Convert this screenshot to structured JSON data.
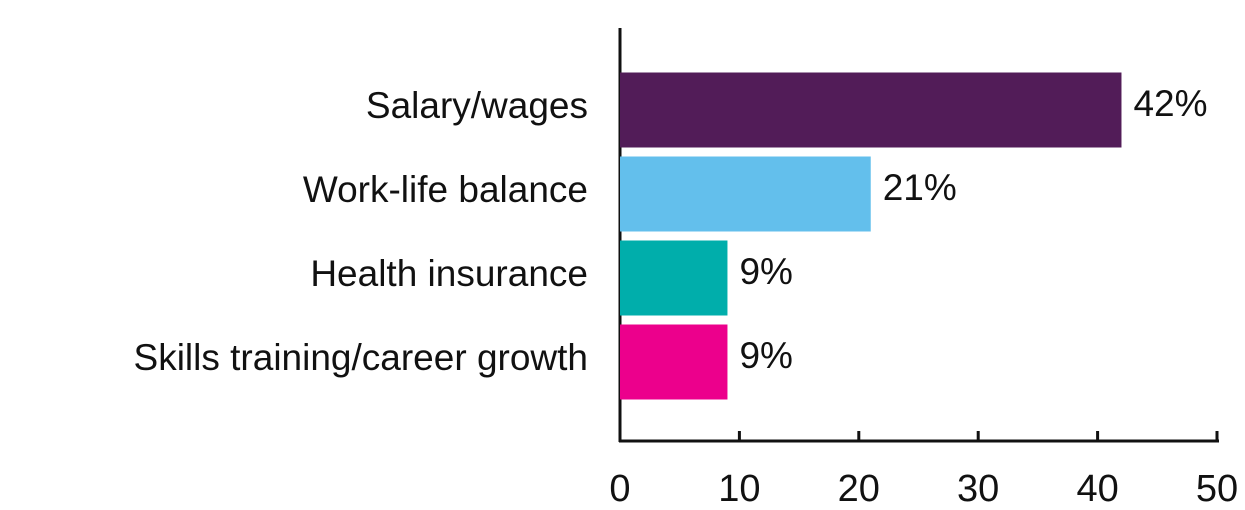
{
  "chart_data": {
    "type": "bar",
    "orientation": "horizontal",
    "categories": [
      "Salary/wages",
      "Work-life balance",
      "Health insurance",
      "Skills training/career growth"
    ],
    "values": [
      42,
      21,
      9,
      9
    ],
    "value_labels": [
      "42%",
      "21%",
      "9%",
      "9%"
    ],
    "colors": [
      "#521c58",
      "#63bfec",
      "#00aeab",
      "#ec008c"
    ],
    "xlim": [
      0,
      50
    ],
    "xticks": [
      0,
      10,
      20,
      30,
      40,
      50
    ],
    "grid": false
  }
}
